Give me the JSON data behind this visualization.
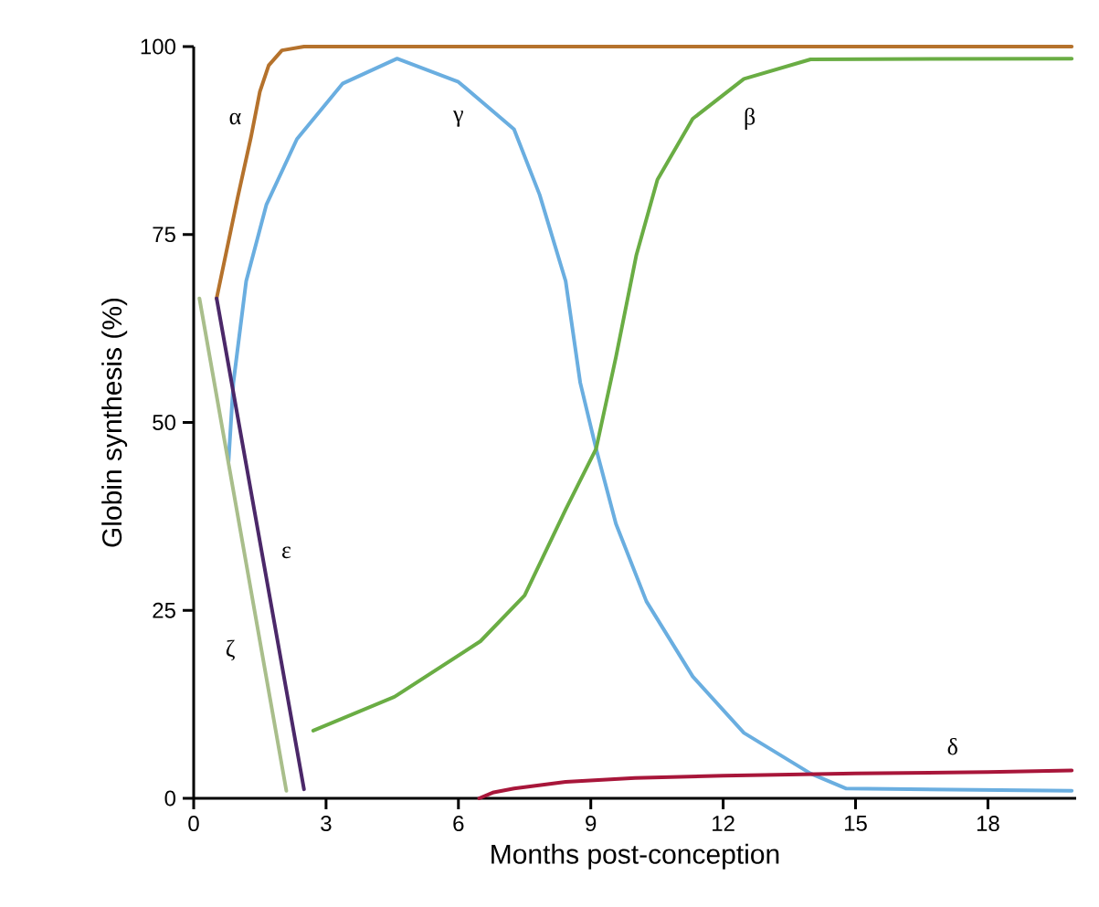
{
  "chart_data": {
    "type": "line",
    "xlabel": "Months post-conception",
    "ylabel": "Globin synthesis (%)",
    "xlim": [
      0,
      20
    ],
    "ylim": [
      0,
      100
    ],
    "xticks": [
      0,
      3,
      6,
      9,
      12,
      15,
      18
    ],
    "yticks": [
      0,
      25,
      50,
      75,
      100
    ],
    "series": [
      {
        "name": "α",
        "color": "#b5722c",
        "x": [
          0.52,
          1.0,
          1.3,
          1.5,
          1.7,
          2.0,
          2.5,
          19.9
        ],
        "values": [
          66.5,
          80,
          88,
          94,
          97.5,
          99.5,
          100,
          100
        ]
      },
      {
        "name": "γ",
        "color": "#6aaee0",
        "x": [
          0.79,
          0.9,
          1.19,
          1.65,
          2.34,
          3.38,
          4.61,
          6.0,
          7.26,
          7.84,
          8.43,
          8.76,
          9.12,
          9.57,
          10.26,
          11.31,
          12.47,
          13.98,
          14.79,
          19.9
        ],
        "values": [
          44.8,
          55.3,
          68.8,
          79,
          87.7,
          95.1,
          98.4,
          95.3,
          89,
          80.3,
          68.8,
          55.3,
          46.5,
          36.5,
          26.2,
          16.2,
          8.7,
          3.3,
          1.3,
          1.0
        ]
      },
      {
        "name": "β",
        "color": "#6aad44",
        "x": [
          2.71,
          4.55,
          6.5,
          7.5,
          8.43,
          9.12,
          9.57,
          10.03,
          10.51,
          11.31,
          12.47,
          13.98,
          19.9
        ],
        "values": [
          9,
          13.5,
          20.9,
          27,
          38.4,
          46.5,
          58.7,
          72.2,
          82.3,
          90.4,
          95.7,
          98.3,
          98.4
        ]
      },
      {
        "name": "δ",
        "color": "#a8163a",
        "x": [
          6.47,
          6.8,
          7.26,
          8.43,
          10,
          12,
          15,
          18,
          19.9
        ],
        "values": [
          0,
          0.8,
          1.3,
          2.2,
          2.7,
          3.0,
          3.3,
          3.5,
          3.7
        ]
      },
      {
        "name": "ε",
        "color": "#4b2869",
        "x": [
          0.52,
          2.5
        ],
        "values": [
          66.5,
          1.2
        ]
      },
      {
        "name": "ζ",
        "color": "#a9be8b",
        "x": [
          0.13,
          2.1
        ],
        "values": [
          66.5,
          1
        ]
      }
    ]
  }
}
